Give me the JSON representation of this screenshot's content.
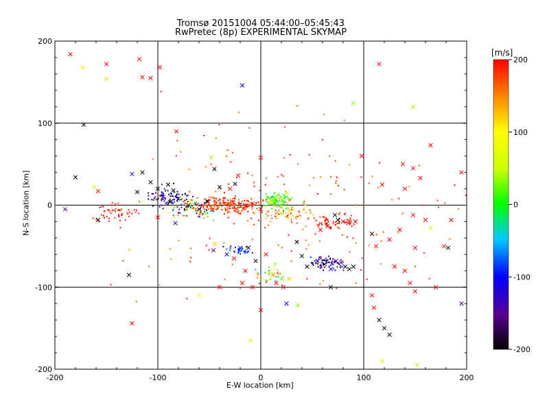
{
  "chart_data": {
    "type": "scatter",
    "title": "Tromsø 20151004 05:44:00–05:45:43",
    "subtitle": "RwPretec (8p) EXPERIMENTAL SKYMAP",
    "xlabel": "E-W location [km]",
    "ylabel": "N-S location [km]",
    "xlim": [
      -200,
      200
    ],
    "ylim": [
      -200,
      200
    ],
    "x_ticks": [
      "-200",
      "-100",
      "0",
      "100",
      "200"
    ],
    "y_ticks": [
      "200",
      "100",
      "0",
      "-100",
      "-200"
    ],
    "grid": true,
    "colorbar": {
      "label": "[m/s]",
      "range": [
        -200,
        200
      ],
      "ticks": [
        "200",
        "100",
        "0",
        "-100",
        "-200"
      ],
      "colormap": "black-purple-blue-cyan-green-yellow-red"
    },
    "markers": {
      "cross": [
        {
          "x": -185,
          "y": 184,
          "v": 200
        },
        {
          "x": -173,
          "y": 168,
          "v": 110
        },
        {
          "x": -150,
          "y": 172,
          "v": 200
        },
        {
          "x": -150,
          "y": 154,
          "v": 120
        },
        {
          "x": -118,
          "y": 178,
          "v": 200
        },
        {
          "x": -115,
          "y": 156,
          "v": 200
        },
        {
          "x": -107,
          "y": 155,
          "v": 200
        },
        {
          "x": -98,
          "y": 168,
          "v": 200
        },
        {
          "x": -82,
          "y": 90,
          "v": 200
        },
        {
          "x": -18,
          "y": 146,
          "v": -100
        },
        {
          "x": 90,
          "y": 124,
          "v": 30
        },
        {
          "x": 115,
          "y": 172,
          "v": 200
        },
        {
          "x": 148,
          "y": 120,
          "v": 40
        },
        {
          "x": 165,
          "y": 73,
          "v": 200
        },
        {
          "x": 98,
          "y": 60,
          "v": 200
        },
        {
          "x": -172,
          "y": 98,
          "v": -200
        },
        {
          "x": -180,
          "y": 34,
          "v": -200
        },
        {
          "x": -162,
          "y": 22,
          "v": 60
        },
        {
          "x": -158,
          "y": 17,
          "v": 200
        },
        {
          "x": -125,
          "y": 38,
          "v": -120
        },
        {
          "x": -115,
          "y": 40,
          "v": -200
        },
        {
          "x": -107,
          "y": 28,
          "v": -200
        },
        {
          "x": -120,
          "y": 16,
          "v": -200
        },
        {
          "x": -100,
          "y": 20,
          "v": -200
        },
        {
          "x": -95,
          "y": 10,
          "v": -150
        },
        {
          "x": -90,
          "y": 25,
          "v": -200
        },
        {
          "x": -85,
          "y": 18,
          "v": -200
        },
        {
          "x": -80,
          "y": 8,
          "v": -200
        },
        {
          "x": -88,
          "y": 4,
          "v": -200
        },
        {
          "x": -70,
          "y": 0,
          "v": -200
        },
        {
          "x": -60,
          "y": -5,
          "v": -200
        },
        {
          "x": -52,
          "y": 5,
          "v": -200
        },
        {
          "x": -48,
          "y": 58,
          "v": 40
        },
        {
          "x": -45,
          "y": 44,
          "v": -200
        },
        {
          "x": -40,
          "y": 22,
          "v": -200
        },
        {
          "x": -30,
          "y": 20,
          "v": 200
        },
        {
          "x": -22,
          "y": 36,
          "v": 200
        },
        {
          "x": -25,
          "y": 26,
          "v": -200
        },
        {
          "x": 0,
          "y": 58,
          "v": 200
        },
        {
          "x": -190,
          "y": -5,
          "v": -150
        },
        {
          "x": -158,
          "y": -18,
          "v": -200
        },
        {
          "x": -128,
          "y": -85,
          "v": -200
        },
        {
          "x": -125,
          "y": -144,
          "v": 200
        },
        {
          "x": -100,
          "y": -15,
          "v": 200
        },
        {
          "x": -83,
          "y": -22,
          "v": -120
        },
        {
          "x": -60,
          "y": -110,
          "v": 100
        },
        {
          "x": -45,
          "y": -47,
          "v": 120
        },
        {
          "x": -46,
          "y": -55,
          "v": -150
        },
        {
          "x": -40,
          "y": -100,
          "v": 200
        },
        {
          "x": -33,
          "y": -60,
          "v": -100
        },
        {
          "x": -26,
          "y": -65,
          "v": 200
        },
        {
          "x": -20,
          "y": -52,
          "v": -120
        },
        {
          "x": -15,
          "y": -80,
          "v": 200
        },
        {
          "x": -18,
          "y": -95,
          "v": 200
        },
        {
          "x": -10,
          "y": -165,
          "v": 60
        },
        {
          "x": -8,
          "y": -100,
          "v": 200
        },
        {
          "x": 0,
          "y": -128,
          "v": 200
        },
        {
          "x": 12,
          "y": -85,
          "v": 150
        },
        {
          "x": 15,
          "y": -95,
          "v": 200
        },
        {
          "x": 20,
          "y": -10,
          "v": 30
        },
        {
          "x": 22,
          "y": -100,
          "v": 200
        },
        {
          "x": 25,
          "y": -120,
          "v": -100
        },
        {
          "x": 28,
          "y": -90,
          "v": 120
        },
        {
          "x": 35,
          "y": -45,
          "v": -200
        },
        {
          "x": 36,
          "y": -122,
          "v": 30
        },
        {
          "x": 40,
          "y": -62,
          "v": -200
        },
        {
          "x": 45,
          "y": -75,
          "v": -200
        },
        {
          "x": 55,
          "y": -68,
          "v": -120
        },
        {
          "x": 58,
          "y": -30,
          "v": 200
        },
        {
          "x": 62,
          "y": -72,
          "v": -200
        },
        {
          "x": 68,
          "y": -78,
          "v": -100
        },
        {
          "x": 68,
          "y": -100,
          "v": -200
        },
        {
          "x": 73,
          "y": -68,
          "v": -150
        },
        {
          "x": 78,
          "y": -70,
          "v": -120
        },
        {
          "x": 82,
          "y": -75,
          "v": -200
        },
        {
          "x": 86,
          "y": -78,
          "v": -200
        },
        {
          "x": 90,
          "y": -75,
          "v": -200
        },
        {
          "x": 75,
          "y": -18,
          "v": -200
        },
        {
          "x": 80,
          "y": -20,
          "v": 200
        },
        {
          "x": 85,
          "y": -22,
          "v": 200
        },
        {
          "x": 92,
          "y": -20,
          "v": 200
        },
        {
          "x": 65,
          "y": -25,
          "v": 200
        },
        {
          "x": 72,
          "y": -12,
          "v": -200
        },
        {
          "x": 108,
          "y": -35,
          "v": -200
        },
        {
          "x": 112,
          "y": -50,
          "v": 200
        },
        {
          "x": 108,
          "y": -110,
          "v": 200
        },
        {
          "x": 110,
          "y": -125,
          "v": 200
        },
        {
          "x": 115,
          "y": -140,
          "v": -200
        },
        {
          "x": 120,
          "y": -150,
          "v": -200
        },
        {
          "x": 125,
          "y": -158,
          "v": -200
        },
        {
          "x": 118,
          "y": -190,
          "v": 60
        },
        {
          "x": 125,
          "y": -42,
          "v": 200
        },
        {
          "x": 130,
          "y": -75,
          "v": 200
        },
        {
          "x": 135,
          "y": -30,
          "v": 200
        },
        {
          "x": 140,
          "y": -80,
          "v": 200
        },
        {
          "x": 145,
          "y": -95,
          "v": 200
        },
        {
          "x": 148,
          "y": -12,
          "v": 200
        },
        {
          "x": 150,
          "y": -52,
          "v": 200
        },
        {
          "x": 150,
          "y": -105,
          "v": 200
        },
        {
          "x": 152,
          "y": -195,
          "v": 40
        },
        {
          "x": 160,
          "y": -18,
          "v": 200
        },
        {
          "x": 165,
          "y": -28,
          "v": 60
        },
        {
          "x": 170,
          "y": -100,
          "v": 200
        },
        {
          "x": 178,
          "y": -50,
          "v": 200
        },
        {
          "x": 182,
          "y": -52,
          "v": -200
        },
        {
          "x": 185,
          "y": -18,
          "v": 200
        },
        {
          "x": 195,
          "y": -120,
          "v": -150
        },
        {
          "x": 195,
          "y": 40,
          "v": 200
        },
        {
          "x": 148,
          "y": 45,
          "v": 200
        },
        {
          "x": 155,
          "y": 33,
          "v": 200
        },
        {
          "x": 140,
          "y": 20,
          "v": 200
        },
        {
          "x": 138,
          "y": 50,
          "v": 200
        },
        {
          "x": 118,
          "y": 25,
          "v": 200
        },
        {
          "x": -12,
          "y": -52,
          "v": -200
        },
        {
          "x": -5,
          "y": -68,
          "v": -180
        },
        {
          "x": 5,
          "y": -60,
          "v": 200
        },
        {
          "x": 0,
          "y": -5,
          "v": 200
        },
        {
          "x": -8,
          "y": 2,
          "v": 200
        },
        {
          "x": 10,
          "y": 5,
          "v": 50
        },
        {
          "x": 25,
          "y": 15,
          "v": 40
        }
      ],
      "dot_clusters": [
        {
          "cx": -30,
          "cy": 0,
          "sx": 35,
          "sy": 10,
          "n": 220,
          "vmin": 150,
          "vmax": 200
        },
        {
          "cx": -90,
          "cy": 10,
          "sx": 22,
          "sy": 14,
          "n": 80,
          "vmin": -200,
          "vmax": -80
        },
        {
          "cx": -70,
          "cy": -5,
          "sx": 25,
          "sy": 12,
          "n": 70,
          "vmin": -200,
          "vmax": 200
        },
        {
          "cx": 15,
          "cy": 5,
          "sx": 14,
          "sy": 10,
          "n": 110,
          "vmin": -20,
          "vmax": 60
        },
        {
          "cx": 25,
          "cy": -10,
          "sx": 25,
          "sy": 12,
          "n": 60,
          "vmin": 100,
          "vmax": 200
        },
        {
          "cx": 70,
          "cy": -20,
          "sx": 20,
          "sy": 8,
          "n": 60,
          "vmin": 180,
          "vmax": 200
        },
        {
          "cx": 65,
          "cy": -70,
          "sx": 18,
          "sy": 8,
          "n": 70,
          "vmin": -200,
          "vmax": -80
        },
        {
          "cx": 10,
          "cy": -85,
          "sx": 18,
          "sy": 12,
          "n": 40,
          "vmin": -60,
          "vmax": 200
        },
        {
          "cx": -20,
          "cy": -55,
          "sx": 14,
          "sy": 5,
          "n": 30,
          "vmin": -120,
          "vmax": -60
        },
        {
          "cx": -140,
          "cy": -10,
          "sx": 22,
          "sy": 14,
          "n": 50,
          "vmin": 180,
          "vmax": 200
        },
        {
          "cx": 20,
          "cy": 0,
          "sx": 160,
          "sy": 110,
          "n": 180,
          "vmin": 150,
          "vmax": 200
        }
      ]
    }
  }
}
